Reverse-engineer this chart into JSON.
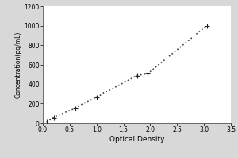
{
  "x_data": [
    0.07,
    0.2,
    0.6,
    1.0,
    1.75,
    1.95,
    3.05
  ],
  "y_data": [
    15,
    60,
    155,
    270,
    490,
    510,
    1000
  ],
  "xlabel": "Optical Density",
  "ylabel": "Concentration(pg/mL)",
  "xlim": [
    0,
    3.5
  ],
  "ylim": [
    0,
    1200
  ],
  "xticks": [
    0,
    0.5,
    1,
    1.5,
    2,
    2.5,
    3,
    3.5
  ],
  "yticks": [
    0,
    200,
    400,
    600,
    800,
    1000,
    1200
  ],
  "line_color": "#444444",
  "marker_color": "#222222",
  "bg_color": "#d8d8d8",
  "plot_bg_color": "#ffffff",
  "marker": "+",
  "marker_size": 5,
  "line_style": ":",
  "line_width": 1.2,
  "tick_fontsize": 5.5,
  "label_fontsize": 6.5,
  "ylabel_fontsize": 5.5
}
